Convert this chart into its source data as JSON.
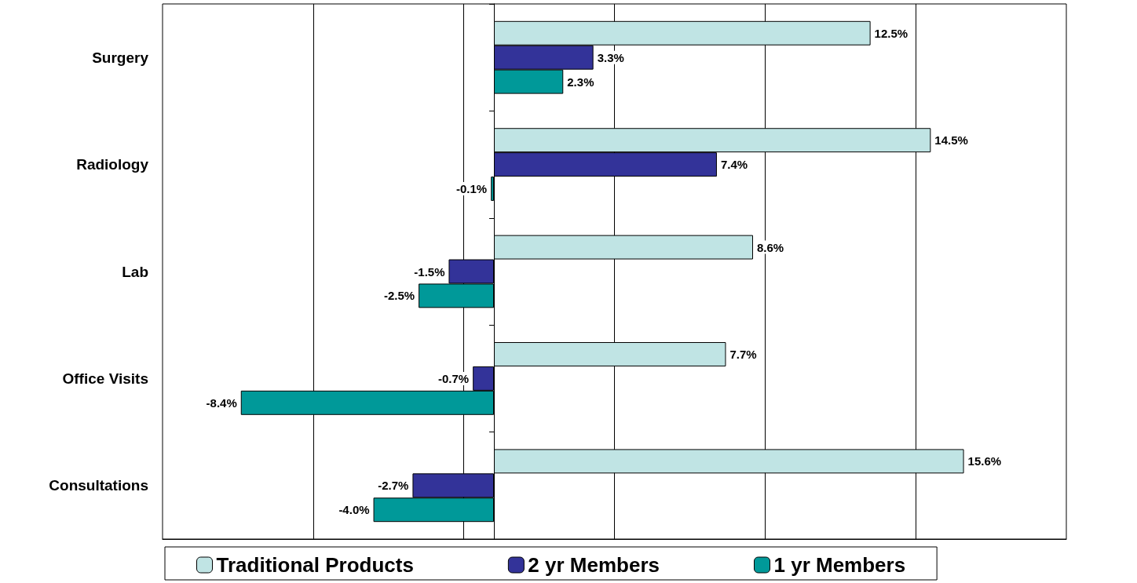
{
  "chart_data": {
    "type": "bar",
    "orientation": "horizontal",
    "categories": [
      "Surgery",
      "Radiology",
      "Lab",
      "Office Visits",
      "Consultations"
    ],
    "series": [
      {
        "name": "Traditional Products",
        "color": "#c0e4e4",
        "values": [
          12.5,
          14.5,
          8.6,
          7.7,
          15.6
        ],
        "value_labels": [
          "12.5%",
          "14.5%",
          "8.6%",
          "7.7%",
          "15.6%"
        ]
      },
      {
        "name": "2 yr Members",
        "color": "#333399",
        "values": [
          3.3,
          7.4,
          -1.5,
          -0.7,
          -2.7
        ],
        "value_labels": [
          "3.3%",
          "7.4%",
          "-1.5%",
          "-0.7%",
          "-2.7%"
        ]
      },
      {
        "name": "1 yr Members",
        "color": "#009999",
        "values": [
          2.3,
          -0.1,
          -2.5,
          -8.4,
          -4.0
        ],
        "value_labels": [
          "2.3%",
          "-0.1%",
          "-2.5%",
          "-8.4%",
          "-4.0%"
        ]
      }
    ],
    "xlim": [
      -11,
      19
    ],
    "xticks": [
      {
        "value": -6,
        "label": null
      },
      {
        "value": -1,
        "label": null
      },
      {
        "value": 4,
        "label": null
      },
      {
        "value": 9,
        "label": null
      },
      {
        "value": 14,
        "label": null
      }
    ],
    "grid": "x",
    "legend": "bottom"
  }
}
